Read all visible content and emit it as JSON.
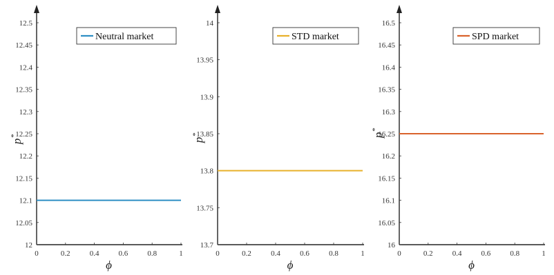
{
  "chart_data": [
    {
      "type": "line",
      "xlabel": "ϕ",
      "ylabel": "p",
      "ylabel_superscript": "*",
      "xlim": [
        0,
        1
      ],
      "ylim": [
        12,
        12.5
      ],
      "xticks": [
        "0",
        "0.2",
        "0.4",
        "0.6",
        "0.8",
        "1"
      ],
      "yticks": [
        "12",
        "12.05",
        "12.1",
        "12.15",
        "12.2",
        "12.25",
        "12.3",
        "12.35",
        "12.4",
        "12.45",
        "12.5"
      ],
      "series": [
        {
          "name": "Neutral market",
          "x": [
            0,
            1
          ],
          "y": [
            12.1,
            12.1
          ],
          "color": "#2f8fc4"
        }
      ],
      "legend": "top-right",
      "grid": false
    },
    {
      "type": "line",
      "xlabel": "ϕ",
      "ylabel": "p",
      "ylabel_superscript": "*",
      "xlim": [
        0,
        1
      ],
      "ylim": [
        13.7,
        14
      ],
      "xticks": [
        "0",
        "0.2",
        "0.4",
        "0.6",
        "0.8",
        "1"
      ],
      "yticks": [
        "13.7",
        "13.75",
        "13.8",
        "13.85",
        "13.9",
        "13.95",
        "14"
      ],
      "series": [
        {
          "name": "STD market",
          "x": [
            0,
            1
          ],
          "y": [
            13.8,
            13.8
          ],
          "color": "#e8b02a"
        }
      ],
      "legend": "top-right",
      "grid": false
    },
    {
      "type": "line",
      "xlabel": "ϕ",
      "ylabel": "p",
      "ylabel_superscript": "*",
      "xlim": [
        0,
        1
      ],
      "ylim": [
        16,
        16.5
      ],
      "xticks": [
        "0",
        "0.2",
        "0.4",
        "0.6",
        "0.8",
        "1"
      ],
      "yticks": [
        "16",
        "16.05",
        "16.1",
        "16.15",
        "16.2",
        "16.25",
        "16.3",
        "16.35",
        "16.4",
        "16.45",
        "16.5"
      ],
      "series": [
        {
          "name": "SPD market",
          "x": [
            0,
            1
          ],
          "y": [
            16.25,
            16.25
          ],
          "color": "#d9622b"
        }
      ],
      "legend": "top-right",
      "grid": false
    }
  ]
}
